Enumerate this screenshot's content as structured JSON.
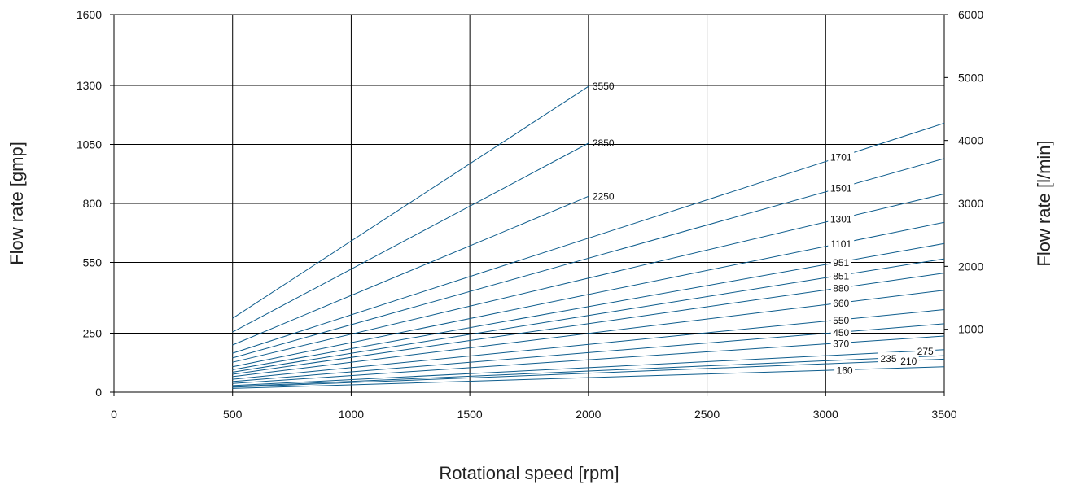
{
  "chart_data": {
    "type": "line",
    "title": "",
    "xlabel": "Rotational speed [rpm]",
    "ylabel_left": "Flow rate [gmp]",
    "ylabel_right": "Flow rate [l/min]",
    "xlim": [
      0,
      3500
    ],
    "ylim_left": [
      0,
      1600
    ],
    "ylim_right": [
      0,
      6000
    ],
    "x_ticks": [
      "0",
      "500",
      "1000",
      "1500",
      "2000",
      "2500",
      "3000",
      "3500"
    ],
    "y_left_ticks": [
      "0",
      "250",
      "550",
      "800",
      "1050",
      "1300",
      "1600"
    ],
    "y_right_ticks": [
      "1000",
      "2000",
      "3000",
      "4000",
      "5000",
      "6000"
    ],
    "grid": true,
    "line_color": "#0d5c8c",
    "series": [
      {
        "name": "3550",
        "x": [
          500,
          2000
        ],
        "y": [
          313,
          1296
        ]
      },
      {
        "name": "2850",
        "x": [
          500,
          2000
        ],
        "y": [
          255,
          1055
        ]
      },
      {
        "name": "2250",
        "x": [
          500,
          2000
        ],
        "y": [
          200,
          830
        ]
      },
      {
        "name": "1701",
        "x": [
          500,
          3500
        ],
        "y": [
          165,
          1140
        ]
      },
      {
        "name": "1501",
        "x": [
          500,
          3500
        ],
        "y": [
          145,
          990
        ]
      },
      {
        "name": "1301",
        "x": [
          500,
          3500
        ],
        "y": [
          127,
          840
        ]
      },
      {
        "name": "1101",
        "x": [
          500,
          3500
        ],
        "y": [
          108,
          720
        ]
      },
      {
        "name": "951",
        "x": [
          500,
          3500
        ],
        "y": [
          95,
          630
        ]
      },
      {
        "name": "851",
        "x": [
          500,
          3500
        ],
        "y": [
          85,
          565
        ]
      },
      {
        "name": "880",
        "x": [
          500,
          3500
        ],
        "y": [
          76,
          505
        ]
      },
      {
        "name": "660",
        "x": [
          500,
          3500
        ],
        "y": [
          66,
          432
        ]
      },
      {
        "name": "550",
        "x": [
          500,
          3500
        ],
        "y": [
          55,
          350
        ]
      },
      {
        "name": "450",
        "x": [
          500,
          3500
        ],
        "y": [
          45,
          290
        ]
      },
      {
        "name": "370",
        "x": [
          500,
          3500
        ],
        "y": [
          37,
          238
        ]
      },
      {
        "name": "275",
        "x": [
          500,
          3500
        ],
        "y": [
          28,
          180
        ]
      },
      {
        "name": "235",
        "x": [
          500,
          3500
        ],
        "y": [
          24,
          155
        ]
      },
      {
        "name": "210",
        "x": [
          500,
          3500
        ],
        "y": [
          21,
          140
        ]
      },
      {
        "name": "160",
        "x": [
          500,
          3500
        ],
        "y": [
          16,
          108
        ]
      }
    ]
  }
}
